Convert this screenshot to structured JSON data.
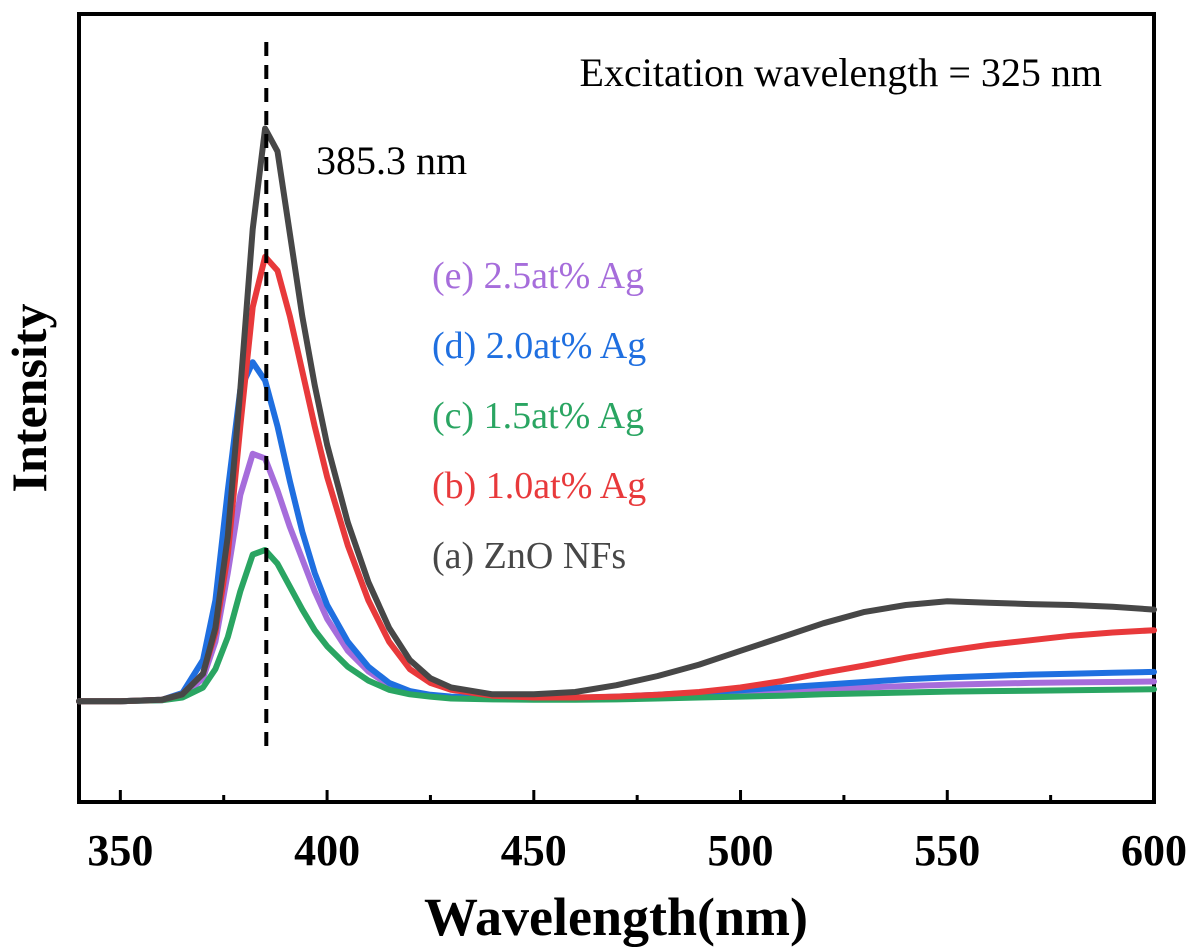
{
  "chart_data": {
    "type": "line",
    "xlabel": "Wavelength(nm)",
    "ylabel": "Intensity",
    "xlim": [
      340,
      600
    ],
    "ylim": [
      -22,
      150
    ],
    "x_ticks": [
      350,
      400,
      450,
      500,
      550,
      600
    ],
    "y_ticks_labeled": false,
    "grid": false,
    "legend_placement": "center",
    "annotations": {
      "excitation": "Excitation wavelength = 325 nm",
      "peak_label": "385.3 nm",
      "peak_line_x": 385.3
    },
    "series": [
      {
        "name": "(a) ZnO NFs",
        "color": "#474747",
        "x": [
          340,
          350,
          360,
          365,
          370,
          373,
          376,
          379,
          382,
          385,
          388,
          391,
          394,
          397,
          400,
          405,
          410,
          415,
          420,
          425,
          430,
          440,
          450,
          460,
          470,
          480,
          490,
          500,
          510,
          520,
          530,
          540,
          550,
          560,
          570,
          580,
          590,
          600
        ],
        "y": [
          0,
          0,
          0.3,
          1.5,
          6,
          16,
          36,
          68,
          103,
          125,
          120,
          102,
          84,
          69,
          56,
          39,
          26,
          16,
          9,
          5,
          3,
          1.5,
          1.5,
          2,
          3.5,
          5.5,
          8,
          11,
          14,
          17,
          19.5,
          21,
          21.8,
          21.5,
          21.2,
          21,
          20.6,
          20
        ]
      },
      {
        "name": "(b) 1.0at% Ag",
        "color": "#e8393b",
        "x": [
          340,
          350,
          360,
          365,
          370,
          373,
          376,
          379,
          382,
          385,
          388,
          391,
          394,
          397,
          400,
          405,
          410,
          415,
          420,
          425,
          430,
          440,
          450,
          460,
          470,
          480,
          490,
          500,
          510,
          520,
          530,
          540,
          550,
          560,
          570,
          580,
          590,
          600
        ],
        "y": [
          0,
          0,
          0.3,
          1.5,
          6,
          15,
          32,
          60,
          86,
          97,
          94,
          84,
          72,
          60,
          49,
          34,
          22,
          13,
          7,
          4,
          2.5,
          1.2,
          0.8,
          0.8,
          1,
          1.4,
          2,
          3,
          4.4,
          6.2,
          7.8,
          9.5,
          11,
          12.3,
          13.3,
          14.3,
          15,
          15.5
        ]
      },
      {
        "name": "(c) 1.5at% Ag",
        "color": "#2aa562",
        "x": [
          340,
          350,
          360,
          365,
          370,
          373,
          376,
          379,
          382,
          385,
          388,
          391,
          394,
          397,
          400,
          405,
          410,
          415,
          420,
          425,
          430,
          440,
          450,
          460,
          470,
          480,
          490,
          500,
          510,
          520,
          530,
          540,
          550,
          560,
          570,
          580,
          590,
          600
        ],
        "y": [
          0,
          0,
          0.2,
          0.8,
          3,
          7,
          14,
          24,
          32,
          33,
          30,
          25,
          20,
          15.5,
          12,
          7.5,
          4.5,
          2.5,
          1.5,
          1,
          0.6,
          0.4,
          0.3,
          0.3,
          0.4,
          0.6,
          0.8,
          1,
          1.2,
          1.5,
          1.7,
          1.9,
          2.1,
          2.2,
          2.3,
          2.4,
          2.5,
          2.6
        ]
      },
      {
        "name": "(d) 2.0at% Ag",
        "color": "#1f6fe0",
        "x": [
          340,
          350,
          360,
          365,
          370,
          373,
          376,
          379,
          382,
          385,
          388,
          391,
          394,
          397,
          400,
          405,
          410,
          415,
          420,
          425,
          430,
          440,
          450,
          460,
          470,
          480,
          490,
          500,
          510,
          520,
          530,
          540,
          550,
          560,
          570,
          580,
          590,
          600
        ],
        "y": [
          0,
          0,
          0.3,
          1.8,
          9,
          22,
          46,
          68,
          74,
          70,
          60,
          48,
          37,
          28,
          21,
          13,
          7.5,
          4,
          2.2,
          1.4,
          1,
          0.7,
          0.6,
          0.7,
          1,
          1.4,
          1.9,
          2.4,
          3,
          3.6,
          4.2,
          4.8,
          5.2,
          5.5,
          5.8,
          6,
          6.2,
          6.4
        ]
      },
      {
        "name": "(e) 2.5at% Ag",
        "color": "#a66ddb",
        "x": [
          340,
          350,
          360,
          365,
          370,
          373,
          376,
          379,
          382,
          385,
          388,
          391,
          394,
          397,
          400,
          405,
          410,
          415,
          420,
          425,
          430,
          440,
          450,
          460,
          470,
          480,
          490,
          500,
          510,
          520,
          530,
          540,
          550,
          560,
          570,
          580,
          590,
          600
        ],
        "y": [
          0,
          0,
          0.2,
          1,
          5,
          13,
          28,
          45,
          54,
          53,
          46,
          38,
          31,
          24,
          18,
          11,
          6.5,
          3.5,
          2,
          1.3,
          0.9,
          0.6,
          0.5,
          0.6,
          0.8,
          1.1,
          1.4,
          1.8,
          2.2,
          2.6,
          3,
          3.3,
          3.6,
          3.8,
          4,
          4.1,
          4.2,
          4.3
        ]
      }
    ]
  }
}
